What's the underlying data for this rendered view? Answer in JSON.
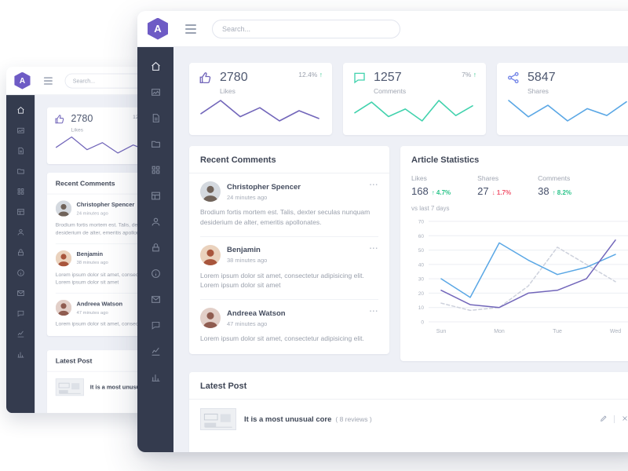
{
  "app": {
    "logo_letter": "A"
  },
  "search": {
    "placeholder": "Search..."
  },
  "icons": {
    "more": "..."
  },
  "stats": [
    {
      "label": "Likes",
      "value": "2780",
      "delta": "12.4%",
      "arrow": "↑",
      "color": "#7266ba"
    },
    {
      "label": "Comments",
      "value": "1257",
      "delta": "7%",
      "arrow": "↑",
      "color": "#41d2ad"
    },
    {
      "label": "Shares",
      "value": "5847",
      "delta": "",
      "arrow": "",
      "color": "#7486e8"
    }
  ],
  "sidebar": {
    "icons": [
      {
        "name": "home-icon",
        "icon": "home",
        "active": true
      },
      {
        "name": "gallery-icon",
        "icon": "image"
      },
      {
        "name": "documents-icon",
        "icon": "doc"
      },
      {
        "name": "folder-icon",
        "icon": "folder"
      },
      {
        "name": "apps-grid-icon",
        "icon": "grid"
      },
      {
        "name": "tables-icon",
        "icon": "table"
      },
      {
        "name": "user-icon",
        "icon": "user"
      },
      {
        "name": "lock-icon",
        "icon": "lock"
      },
      {
        "name": "info-icon",
        "icon": "info"
      },
      {
        "name": "mail-icon",
        "icon": "mail"
      },
      {
        "name": "chat-icon",
        "icon": "chat"
      },
      {
        "name": "line-chart-icon",
        "icon": "chart-line"
      },
      {
        "name": "bar-chart-icon",
        "icon": "chart-bar"
      }
    ]
  },
  "recent_comments": {
    "title": "Recent Comments",
    "items": [
      {
        "name": "Christopher Spencer",
        "time": "24 minutes ago",
        "text": "Brodium fortis mortem est. Talis, dexter seculas nunquam desiderium de alter, emeritis apollonates.",
        "avatar_bg": "#d4d9df",
        "avatar_fg": "#70635a"
      },
      {
        "name": "Benjamin",
        "time": "38 minutes ago",
        "text": "Lorem ipsum dolor sit amet, consectetur adipisicing elit. Lorem ipsum dolor sit amet",
        "avatar_bg": "#ead2bd",
        "avatar_fg": "#a8553c"
      },
      {
        "name": "Andreea Watson",
        "time": "47 minutes ago",
        "text": "Lorem ipsum dolor sit amet, consectetur adipisicing elit.",
        "avatar_bg": "#e2cfc8",
        "avatar_fg": "#8f5c50"
      }
    ]
  },
  "article_stats": {
    "title": "Article Statistics",
    "subtitle": "vs last 7 days",
    "metrics": [
      {
        "label": "Likes",
        "value": "168",
        "delta": "↑ 4.7%",
        "dir": "up"
      },
      {
        "label": "Shares",
        "value": "27",
        "delta": "↓ 1.7%",
        "dir": "down"
      },
      {
        "label": "Comments",
        "value": "38",
        "delta": "↑ 8.2%",
        "dir": "up"
      }
    ]
  },
  "latest_post": {
    "title": "Latest Post",
    "post_title": "It is a most unusual core",
    "reviews": "( 8 reviews )"
  },
  "chart_data": [
    {
      "type": "line",
      "name": "likes-sparkline",
      "values": [
        40,
        62,
        35,
        50,
        28,
        45,
        32
      ],
      "color": "#7266ba"
    },
    {
      "type": "line",
      "name": "comments-sparkline",
      "values": [
        45,
        65,
        38,
        52,
        30,
        68,
        40,
        58
      ],
      "color": "#41d2ad"
    },
    {
      "type": "line",
      "name": "shares-sparkline",
      "values": [
        62,
        38,
        55,
        32,
        50,
        40,
        60
      ],
      "color": "#5aa7e5"
    },
    {
      "type": "line",
      "name": "article-statistics-chart",
      "title": "Article Statistics",
      "x_labels": [
        "Sun",
        "Mon",
        "Tue",
        "Wed"
      ],
      "y_ticks": [
        0,
        10,
        20,
        30,
        40,
        50,
        60,
        70
      ],
      "ylim": [
        0,
        70
      ],
      "grid": true,
      "series": [
        {
          "name": "previous-period",
          "color": "#cdd1dc",
          "style": "dashed",
          "points": [
            [
              0,
              13
            ],
            [
              0.5,
              8
            ],
            [
              1,
              10
            ],
            [
              1.5,
              25
            ],
            [
              2,
              52
            ],
            [
              2.5,
              40
            ],
            [
              3,
              28
            ]
          ]
        },
        {
          "name": "views",
          "color": "#5aa7e5",
          "style": "solid",
          "points": [
            [
              0,
              30
            ],
            [
              0.5,
              17
            ],
            [
              1,
              55
            ],
            [
              1.5,
              43
            ],
            [
              2,
              33
            ],
            [
              2.5,
              38
            ],
            [
              3,
              47
            ]
          ]
        },
        {
          "name": "likes",
          "color": "#7266ba",
          "style": "solid",
          "points": [
            [
              0,
              22
            ],
            [
              0.5,
              12
            ],
            [
              1,
              10
            ],
            [
              1.5,
              20
            ],
            [
              2,
              22
            ],
            [
              2.5,
              30
            ],
            [
              3,
              57
            ]
          ]
        }
      ]
    }
  ]
}
